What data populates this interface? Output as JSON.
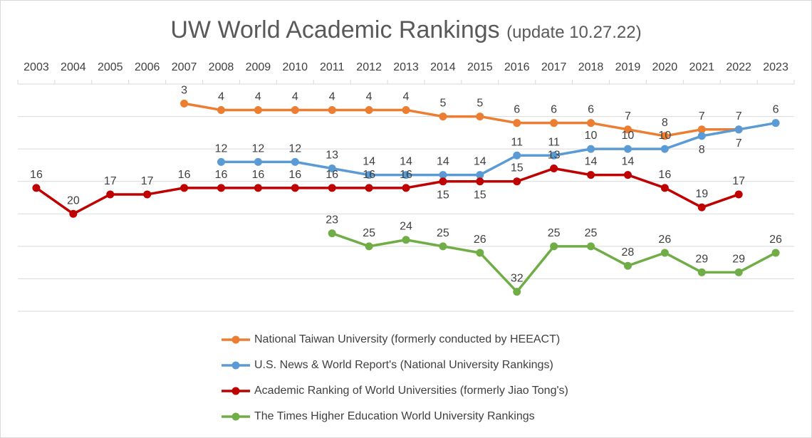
{
  "chart_data": {
    "type": "line",
    "title": "UW World Academic Rankings",
    "subtitle": "(update 10.27.22)",
    "categories": [
      "2003",
      "2004",
      "2005",
      "2006",
      "2007",
      "2008",
      "2009",
      "2010",
      "2011",
      "2012",
      "2013",
      "2014",
      "2015",
      "2016",
      "2017",
      "2018",
      "2019",
      "2020",
      "2021",
      "2022",
      "2023"
    ],
    "y_axis": {
      "reversed": true,
      "range": [
        0,
        35
      ],
      "gridline_step": 5,
      "tick_labels_shown": false
    },
    "x_axis_position": "top",
    "grid": true,
    "legend_position": "bottom",
    "series": [
      {
        "name": "National Taiwan University (formerly conducted by HEEACT)",
        "color": "#ED7D31",
        "values": [
          null,
          null,
          null,
          null,
          3,
          4,
          4,
          4,
          4,
          4,
          4,
          5,
          5,
          6,
          6,
          6,
          7,
          8,
          7,
          7,
          null
        ]
      },
      {
        "name": "U.S. News & World Report's (National University Rankings)",
        "color": "#5B9BD5",
        "values": [
          null,
          null,
          null,
          null,
          null,
          12,
          12,
          12,
          13,
          14,
          14,
          14,
          14,
          11,
          11,
          10,
          10,
          10,
          8,
          7,
          6
        ]
      },
      {
        "name": "Academic Ranking of World Universities (formerly Jiao Tong's)",
        "color": "#C00000",
        "values": [
          16,
          20,
          17,
          17,
          16,
          16,
          16,
          16,
          16,
          16,
          16,
          15,
          15,
          15,
          13,
          14,
          14,
          16,
          19,
          17,
          null
        ]
      },
      {
        "name": "The Times Higher Education World University Rankings",
        "color": "#70AD47",
        "values": [
          null,
          null,
          null,
          null,
          null,
          null,
          null,
          null,
          23,
          25,
          24,
          25,
          26,
          32,
          25,
          25,
          28,
          26,
          29,
          29,
          26
        ]
      }
    ]
  }
}
